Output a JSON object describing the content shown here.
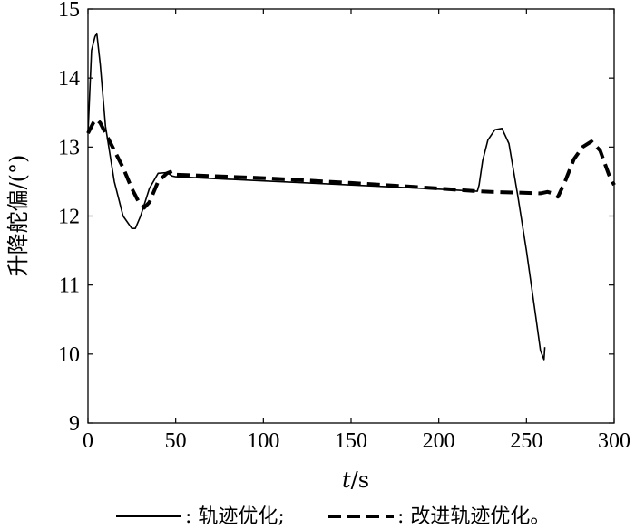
{
  "chart_data": {
    "type": "line",
    "xlabel_var": "t",
    "xlabel_unit": "/s",
    "ylabel": "升降舵偏/(°)",
    "xlim": [
      0,
      300
    ],
    "ylim": [
      9,
      15
    ],
    "xticks": [
      0,
      50,
      100,
      150,
      200,
      250,
      300
    ],
    "yticks": [
      9,
      10,
      11,
      12,
      13,
      14,
      15
    ],
    "grid": false,
    "legend_position": "bottom",
    "series": [
      {
        "name": "轨迹优化;",
        "style": "solid",
        "color": "#000000",
        "x": [
          0,
          2,
          4,
          5,
          7,
          10,
          15,
          20,
          25,
          27,
          30,
          35,
          40,
          45,
          48,
          50,
          100,
          150,
          200,
          222,
          223,
          225,
          228,
          232,
          236,
          240,
          245,
          250,
          255,
          258,
          260,
          260.5
        ],
        "y": [
          13.2,
          14.4,
          14.6,
          14.65,
          14.2,
          13.3,
          12.5,
          12.0,
          11.82,
          11.82,
          12.0,
          12.4,
          12.62,
          12.63,
          12.58,
          12.57,
          12.51,
          12.45,
          12.39,
          12.36,
          12.45,
          12.8,
          13.1,
          13.25,
          13.27,
          13.05,
          12.3,
          11.5,
          10.6,
          10.05,
          9.92,
          10.1
        ]
      },
      {
        "name": "改进轨迹优化。",
        "style": "dashed",
        "color": "#000000",
        "x": [
          0,
          3,
          5,
          7,
          10,
          15,
          20,
          25,
          29,
          32,
          35,
          40,
          45,
          48,
          50,
          100,
          150,
          200,
          222,
          230,
          245,
          258,
          262,
          265,
          268,
          272,
          277,
          282,
          287,
          292,
          297,
          300
        ],
        "y": [
          13.2,
          13.35,
          13.4,
          13.35,
          13.2,
          12.95,
          12.7,
          12.4,
          12.2,
          12.12,
          12.2,
          12.5,
          12.62,
          12.65,
          12.6,
          12.55,
          12.48,
          12.4,
          12.36,
          12.35,
          12.34,
          12.33,
          12.35,
          12.33,
          12.28,
          12.5,
          12.82,
          13.0,
          13.08,
          12.95,
          12.6,
          12.45
        ]
      }
    ]
  }
}
